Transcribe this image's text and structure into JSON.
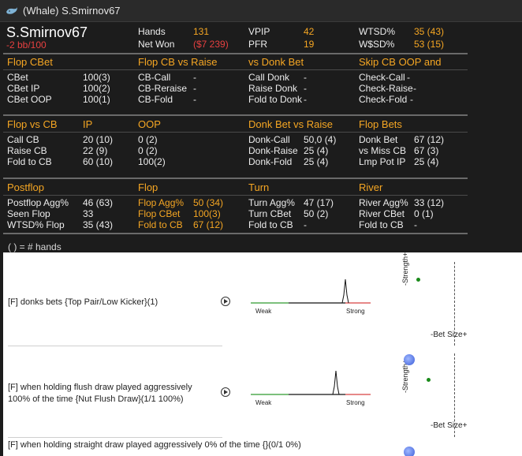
{
  "window": {
    "title": "(Whale) S.Smirnov67"
  },
  "player": {
    "name": "S.Smirnov67",
    "winrate": "-2 bb/100"
  },
  "summary": {
    "hands_label": "Hands",
    "hands": "131",
    "netwon_label": "Net Won",
    "netwon": "($7 239)",
    "vpip_label": "VPIP",
    "vpip": "42",
    "pfr_label": "PFR",
    "pfr": "19",
    "wtsd_label": "WTSD%",
    "wtsd": "35 (43)",
    "wsd_label": "W$SD%",
    "wsd": "53 (15)"
  },
  "flop_cbet": {
    "h1": "Flop CBet",
    "h2": "Flop CB vs Raise",
    "h3": "vs Donk Bet",
    "h4": "Skip CB OOP and",
    "rows": [
      {
        "l1": "CBet",
        "v1": "100(3)",
        "l2": "CB-Call",
        "v2": "-",
        "l3": "Call Donk",
        "v3": "-",
        "l4": "Check-Call",
        "v4": "-"
      },
      {
        "l1": "CBet IP",
        "v1": "100(2)",
        "l2": "CB-Reraise",
        "v2": "-",
        "l3": "Raise Donk",
        "v3": "-",
        "l4": "Check-Raise",
        "v4": "-"
      },
      {
        "l1": "CBet OOP",
        "v1": "100(1)",
        "l2": "CB-Fold",
        "v2": "-",
        "l3": "Fold to Donk",
        "v3": "-",
        "l4": "Check-Fold",
        "v4": "-"
      }
    ]
  },
  "flop_vs_cb": {
    "h1": "Flop vs CB",
    "h1b": "IP",
    "h2": "OOP",
    "h3": "Donk Bet vs Raise",
    "h4": "Flop Bets",
    "rows": [
      {
        "l1": "Call CB",
        "v1": "20 (10)",
        "v2": "0 (2)",
        "l3": "Donk-Call",
        "v3": "50,0 (4)",
        "l4": "Donk Bet",
        "v4": "67 (12)"
      },
      {
        "l1": "Raise CB",
        "v1": "22 (9)",
        "v2": "0 (2)",
        "l3": "Donk-Raise",
        "v3": "25 (4)",
        "l4": "vs Miss CB",
        "v4": "67 (3)"
      },
      {
        "l1": "Fold to CB",
        "v1": "60 (10)",
        "v2": "100(2)",
        "l3": "Donk-Fold",
        "v3": "25 (4)",
        "l4": "Lmp Pot IP",
        "v4": "25 (4)"
      }
    ]
  },
  "postflop": {
    "h1": "Postflop",
    "h2": "Flop",
    "h3": "Turn",
    "h4": "River",
    "rows": [
      {
        "l1": "Postflop Agg%",
        "v1": "46 (63)",
        "l2": "Flop Agg%",
        "v2": "50 (34)",
        "l3": "Turn Agg%",
        "v3": "47 (17)",
        "l4": "River Agg%",
        "v4": "33 (12)"
      },
      {
        "l1": "Seen Flop",
        "v1": "33",
        "l2": "Flop CBet",
        "v2": "100(3)",
        "l3": "Turn CBet",
        "v3": "50 (2)",
        "l4": "River CBet",
        "v4": "0 (1)"
      },
      {
        "l1": "WTSD% Flop",
        "v1": "35 (43)",
        "l2": "Fold to CB",
        "v2": "67 (12)",
        "l3": "Fold to CB",
        "v3": "-",
        "l4": "Fold to CB",
        "v4": "-"
      }
    ]
  },
  "note": "( ) = # hands",
  "tendencies": [
    {
      "line1": "[F] donks bets {Top Pair/Low Kicker}(1)",
      "line2": "",
      "weak": "Weak",
      "strong": "Strong",
      "strength": "-Strength+",
      "betsize": "-Bet Size+"
    },
    {
      "line1": "[F] when holding flush draw played aggressively",
      "line2": "100% of the time {Nut Flush Draw}(1/1 100%)",
      "weak": "Weak",
      "strong": "Strong",
      "strength": "-Strength+",
      "betsize": "-Bet Size+"
    },
    {
      "line1": "[F] when holding straight draw played aggressively 0% of the time {}(0/1 0%)",
      "line2": ""
    }
  ],
  "colors": {
    "orange": "#f5a623",
    "red": "#e64040",
    "green": "#1a8a1a"
  }
}
